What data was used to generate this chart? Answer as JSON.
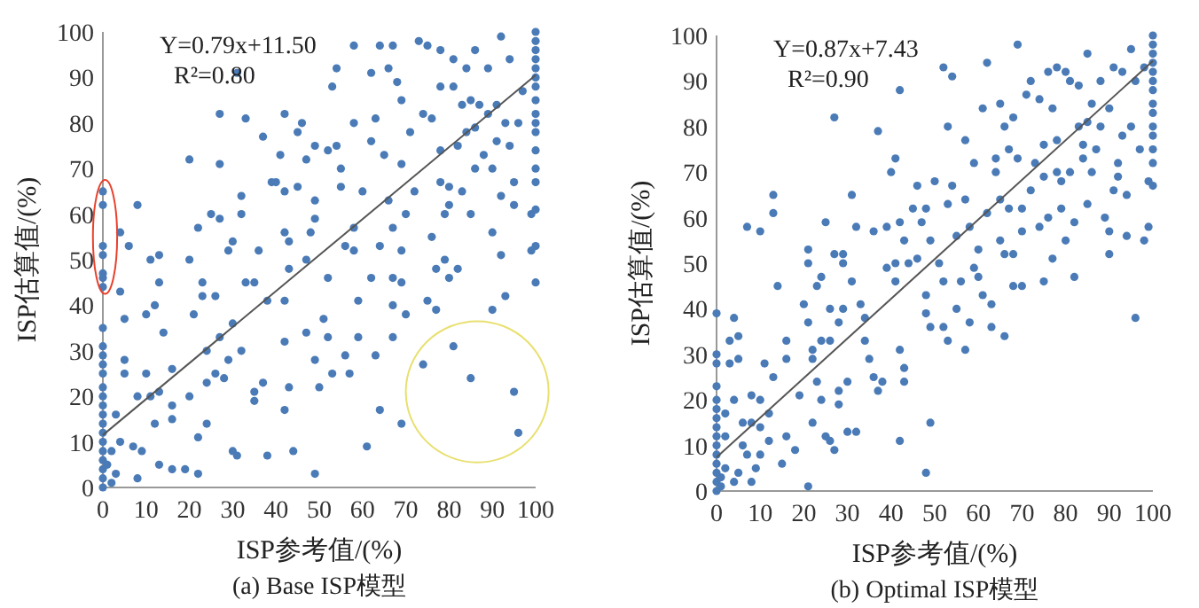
{
  "chart_data": [
    {
      "type": "scatter",
      "title": "(a) Base ISP模型",
      "xlabel": "ISP参考值/(%)",
      "ylabel": "ISP估算值/(%)",
      "annotations": [
        "Y=0.79x+11.50",
        "R²=0.80"
      ],
      "xlim": [
        0,
        100
      ],
      "ylim": [
        0,
        100
      ],
      "xticks": [
        0,
        10,
        20,
        30,
        40,
        50,
        60,
        70,
        80,
        90,
        100
      ],
      "yticks": [
        0,
        10,
        20,
        30,
        40,
        50,
        60,
        70,
        80,
        90,
        100
      ],
      "series": [
        {
          "marker": "circle",
          "color": "#4a7bb7",
          "x": [
            0,
            0,
            0,
            0,
            0,
            0,
            0,
            0,
            0,
            0,
            0,
            0,
            0,
            0,
            0,
            0,
            0,
            0,
            0,
            0,
            0,
            0,
            0,
            0,
            2,
            3,
            1,
            2,
            4,
            3,
            4,
            4,
            5,
            5,
            5,
            6,
            7,
            8,
            8,
            8,
            9,
            10,
            10,
            11,
            11,
            12,
            12,
            13,
            13,
            13,
            13,
            14,
            16,
            16,
            16,
            16,
            19,
            20,
            20,
            21,
            20,
            22,
            22,
            22,
            23,
            23,
            24,
            24,
            24,
            25,
            26,
            26,
            27,
            27,
            27,
            27,
            28,
            29,
            29,
            30,
            30,
            30,
            31,
            31,
            32,
            32,
            32,
            33,
            33,
            35,
            35,
            35,
            36,
            37,
            37,
            38,
            38,
            39,
            40,
            41,
            42,
            42,
            42,
            42,
            42,
            42,
            43,
            43,
            43,
            44,
            45,
            45,
            46,
            47,
            47,
            47,
            48,
            49,
            49,
            49,
            49,
            49,
            50,
            51,
            52,
            52,
            52,
            53,
            53,
            54,
            54,
            55,
            55,
            56,
            56,
            57,
            58,
            58,
            58,
            58,
            59,
            59,
            60,
            61,
            62,
            62,
            62,
            63,
            63,
            64,
            64,
            64,
            65,
            66,
            66,
            67,
            67,
            67,
            67,
            67,
            68,
            69,
            69,
            69,
            69,
            69,
            70,
            70,
            71,
            72,
            73,
            74,
            74,
            75,
            75,
            76,
            76,
            77,
            77,
            78,
            78,
            78,
            78,
            79,
            79,
            80,
            80,
            80,
            81,
            81,
            81,
            82,
            82,
            83,
            83,
            84,
            84,
            85,
            85,
            85,
            86,
            86,
            86,
            87,
            88,
            89,
            89,
            90,
            90,
            90,
            91,
            91,
            92,
            92,
            92,
            93,
            93,
            94,
            94,
            95,
            95,
            95,
            96,
            96,
            97,
            99,
            99,
            100,
            100,
            100,
            100,
            100,
            100,
            100,
            100,
            100,
            100,
            100,
            100,
            100,
            100,
            100,
            100,
            100
          ],
          "values": [
            0,
            2,
            4,
            6,
            8,
            10,
            12,
            14,
            16,
            18,
            20,
            22,
            25,
            27,
            29,
            31,
            35,
            44,
            46,
            47,
            51,
            53,
            62,
            65,
            1,
            3,
            5,
            8,
            10,
            16,
            43,
            56,
            25,
            28,
            37,
            53,
            9,
            2,
            20,
            62,
            8,
            25,
            38,
            50,
            20,
            14,
            40,
            45,
            51,
            21,
            5,
            34,
            18,
            26,
            15,
            4,
            4,
            20,
            50,
            38,
            72,
            57,
            11,
            3,
            42,
            45,
            14,
            30,
            23,
            60,
            42,
            25,
            71,
            59,
            82,
            33,
            24,
            28,
            52,
            54,
            36,
            8,
            7,
            91,
            64,
            60,
            30,
            81,
            45,
            21,
            19,
            45,
            52,
            23,
            77,
            7,
            41,
            67,
            67,
            73,
            56,
            65,
            41,
            32,
            17,
            82,
            22,
            48,
            54,
            8,
            66,
            78,
            80,
            50,
            34,
            72,
            56,
            75,
            63,
            59,
            28,
            3,
            22,
            37,
            33,
            46,
            74,
            25,
            88,
            92,
            75,
            66,
            70,
            53,
            29,
            25,
            80,
            57,
            97,
            52,
            41,
            33,
            65,
            9,
            91,
            76,
            46,
            29,
            81,
            97,
            53,
            17,
            73,
            92,
            63,
            46,
            57,
            33,
            97,
            40,
            89,
            71,
            85,
            52,
            45,
            14,
            60,
            38,
            78,
            65,
            98,
            82,
            27,
            97,
            41,
            55,
            81,
            48,
            39,
            67,
            88,
            74,
            96,
            60,
            50,
            62,
            46,
            66,
            31,
            94,
            88,
            48,
            75,
            84,
            65,
            78,
            92,
            24,
            85,
            60,
            70,
            96,
            79,
            84,
            73,
            82,
            92,
            70,
            56,
            39,
            76,
            84,
            99,
            51,
            64,
            80,
            42,
            94,
            75,
            21,
            62,
            67,
            12,
            80,
            87,
            60,
            52,
            45,
            53,
            61,
            67,
            70,
            74,
            78,
            80,
            82,
            85,
            88,
            90,
            92,
            94,
            96,
            98,
            100
          ]
        },
        {
          "type": "line",
          "color": "#555555",
          "line_style": "solid",
          "x": [
            0,
            100
          ],
          "values": [
            11.5,
            90.5
          ]
        }
      ]
    },
    {
      "type": "scatter",
      "title": "(b) Optimal ISP模型",
      "xlabel": "ISP参考值/(%)",
      "ylabel": "ISP估算值/(%)",
      "annotations": [
        "Y=0.87x+7.43",
        "R²=0.90"
      ],
      "xlim": [
        0,
        100
      ],
      "ylim": [
        0,
        100
      ],
      "xticks": [
        0,
        10,
        20,
        30,
        40,
        50,
        60,
        70,
        80,
        90,
        100
      ],
      "yticks": [
        0,
        10,
        20,
        30,
        40,
        50,
        60,
        70,
        80,
        90,
        100
      ],
      "series": [
        {
          "marker": "circle",
          "color": "#4a7bb7",
          "x": [
            0,
            0,
            0,
            0,
            0,
            0,
            0,
            0,
            0,
            0,
            0,
            0,
            0,
            0,
            0,
            1,
            1,
            2,
            2,
            2,
            3,
            3,
            4,
            4,
            4,
            5,
            5,
            5,
            6,
            6,
            7,
            7,
            8,
            8,
            8,
            9,
            10,
            10,
            10,
            10,
            11,
            12,
            12,
            13,
            13,
            13,
            14,
            15,
            16,
            16,
            16,
            18,
            19,
            20,
            21,
            21,
            21,
            21,
            22,
            22,
            22,
            23,
            23,
            24,
            24,
            24,
            25,
            25,
            26,
            26,
            26,
            27,
            27,
            27,
            28,
            28,
            28,
            29,
            29,
            29,
            30,
            30,
            31,
            31,
            32,
            32,
            33,
            34,
            34,
            35,
            36,
            36,
            37,
            37,
            38,
            39,
            39,
            40,
            41,
            41,
            41,
            42,
            42,
            42,
            42,
            43,
            43,
            43,
            44,
            45,
            46,
            46,
            47,
            48,
            48,
            48,
            48,
            49,
            49,
            49,
            50,
            51,
            52,
            52,
            52,
            53,
            53,
            53,
            54,
            54,
            55,
            55,
            56,
            57,
            57,
            57,
            58,
            58,
            59,
            59,
            60,
            60,
            61,
            61,
            62,
            62,
            63,
            63,
            64,
            64,
            65,
            65,
            65,
            66,
            66,
            66,
            67,
            67,
            68,
            68,
            68,
            69,
            69,
            70,
            70,
            70,
            71,
            72,
            72,
            73,
            74,
            74,
            75,
            75,
            75,
            76,
            76,
            77,
            77,
            78,
            78,
            78,
            79,
            79,
            80,
            80,
            81,
            81,
            82,
            82,
            83,
            83,
            84,
            84,
            85,
            85,
            85,
            86,
            86,
            87,
            88,
            88,
            89,
            90,
            90,
            90,
            91,
            91,
            92,
            92,
            93,
            93,
            94,
            94,
            95,
            95,
            96,
            96,
            97,
            98,
            98,
            99,
            99,
            100,
            100,
            100,
            100,
            100,
            100,
            100,
            100,
            100,
            100,
            100,
            100,
            100,
            100
          ],
          "values": [
            0,
            2,
            4,
            6,
            8,
            10,
            12,
            14,
            16,
            18,
            20,
            23,
            28,
            30,
            39,
            1,
            3,
            5,
            12,
            17,
            28,
            33,
            38,
            2,
            20,
            29,
            34,
            4,
            10,
            15,
            58,
            8,
            2,
            15,
            21,
            5,
            8,
            20,
            14,
            57,
            28,
            17,
            11,
            25,
            61,
            65,
            45,
            6,
            29,
            33,
            12,
            9,
            21,
            41,
            53,
            50,
            37,
            1,
            31,
            29,
            15,
            45,
            24,
            47,
            33,
            20,
            59,
            12,
            40,
            33,
            11,
            9,
            82,
            52,
            37,
            22,
            19,
            52,
            50,
            40,
            13,
            24,
            65,
            46,
            58,
            13,
            41,
            38,
            33,
            29,
            57,
            25,
            22,
            79,
            24,
            49,
            58,
            70,
            73,
            50,
            46,
            59,
            31,
            11,
            88,
            27,
            24,
            55,
            50,
            62,
            67,
            51,
            59,
            62,
            43,
            39,
            4,
            15,
            36,
            55,
            68,
            50,
            93,
            46,
            36,
            33,
            80,
            63,
            91,
            67,
            56,
            40,
            46,
            31,
            64,
            77,
            37,
            58,
            72,
            49,
            47,
            53,
            84,
            43,
            61,
            94,
            36,
            41,
            73,
            70,
            64,
            85,
            55,
            80,
            52,
            34,
            75,
            62,
            52,
            45,
            82,
            73,
            98,
            57,
            45,
            62,
            87,
            90,
            66,
            72,
            86,
            58,
            76,
            69,
            46,
            92,
            60,
            84,
            51,
            77,
            93,
            70,
            62,
            68,
            92,
            55,
            90,
            70,
            59,
            47,
            89,
            80,
            76,
            73,
            63,
            96,
            81,
            70,
            85,
            75,
            80,
            90,
            60,
            84,
            57,
            52,
            93,
            66,
            72,
            69,
            92,
            78,
            65,
            56,
            97,
            80,
            38,
            90,
            75,
            55,
            93,
            68,
            58,
            67,
            72,
            75,
            78,
            80,
            83,
            85,
            88,
            90,
            92,
            94,
            96,
            98,
            100
          ]
        },
        {
          "type": "line",
          "color": "#555555",
          "line_style": "solid",
          "x": [
            0,
            100
          ],
          "values": [
            7.4,
            94.4
          ]
        }
      ]
    }
  ]
}
